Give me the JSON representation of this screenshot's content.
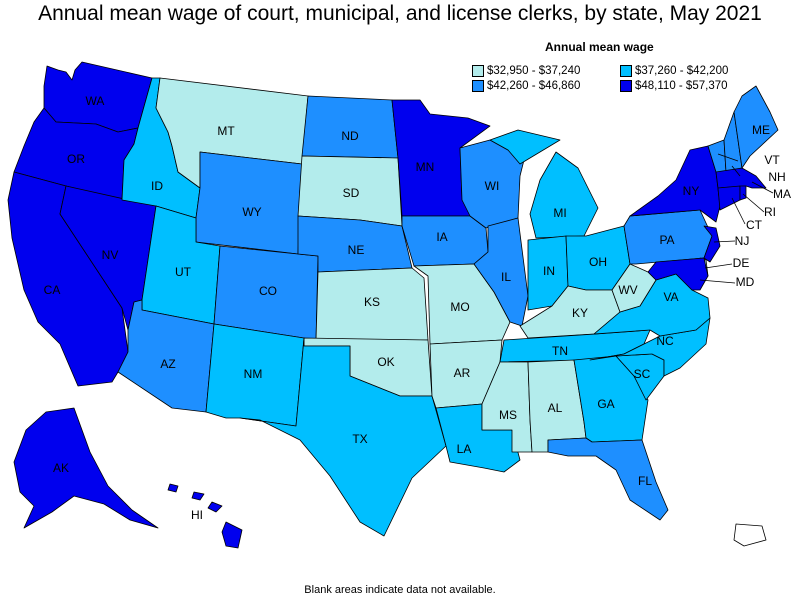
{
  "title": "Annual mean wage of court, municipal, and license clerks, by state, May 2021",
  "legend": {
    "title": "Annual mean wage",
    "items": [
      {
        "key": "c1",
        "label": "$32,950 - $37,240",
        "color": "#b3ecec"
      },
      {
        "key": "c3",
        "label": "$37,260 - $42,200",
        "color": "#00bfff"
      },
      {
        "key": "c2",
        "label": "$42,260 - $46,860",
        "color": "#1e8fff"
      },
      {
        "key": "c4",
        "label": "$48,110 - $57,370",
        "color": "#0000ee"
      }
    ]
  },
  "footnote": "Blank areas indicate data not available.",
  "states": {
    "WA": {
      "label": "WA",
      "class": "c4"
    },
    "OR": {
      "label": "OR",
      "class": "c4"
    },
    "CA": {
      "label": "CA",
      "class": "c4"
    },
    "NV": {
      "label": "NV",
      "class": "c4"
    },
    "ID": {
      "label": "ID",
      "class": "c3"
    },
    "MT": {
      "label": "MT",
      "class": "c1"
    },
    "WY": {
      "label": "WY",
      "class": "c2"
    },
    "UT": {
      "label": "UT",
      "class": "c3"
    },
    "AZ": {
      "label": "AZ",
      "class": "c2"
    },
    "CO": {
      "label": "CO",
      "class": "c2"
    },
    "NM": {
      "label": "NM",
      "class": "c3"
    },
    "ND": {
      "label": "ND",
      "class": "c2"
    },
    "SD": {
      "label": "SD",
      "class": "c1"
    },
    "NE": {
      "label": "NE",
      "class": "c2"
    },
    "KS": {
      "label": "KS",
      "class": "c1"
    },
    "OK": {
      "label": "OK",
      "class": "c1"
    },
    "TX": {
      "label": "TX",
      "class": "c3"
    },
    "MN": {
      "label": "MN",
      "class": "c4"
    },
    "IA": {
      "label": "IA",
      "class": "c2"
    },
    "MO": {
      "label": "MO",
      "class": "c1"
    },
    "AR": {
      "label": "AR",
      "class": "c1"
    },
    "LA": {
      "label": "LA",
      "class": "c3"
    },
    "WI": {
      "label": "WI",
      "class": "c2"
    },
    "IL": {
      "label": "IL",
      "class": "c2"
    },
    "MI": {
      "label": "MI",
      "class": "c3"
    },
    "IN": {
      "label": "IN",
      "class": "c3"
    },
    "OH": {
      "label": "OH",
      "class": "c3"
    },
    "KY": {
      "label": "KY",
      "class": "c1"
    },
    "TN": {
      "label": "TN",
      "class": "c3"
    },
    "MS": {
      "label": "MS",
      "class": "c1"
    },
    "AL": {
      "label": "AL",
      "class": "c1"
    },
    "GA": {
      "label": "GA",
      "class": "c3"
    },
    "FL": {
      "label": "FL",
      "class": "c2"
    },
    "SC": {
      "label": "SC",
      "class": "c3"
    },
    "NC": {
      "label": "NC",
      "class": "c3"
    },
    "VA": {
      "label": "VA",
      "class": "c3"
    },
    "WV": {
      "label": "WV",
      "class": "c1"
    },
    "PA": {
      "label": "PA",
      "class": "c2"
    },
    "NY": {
      "label": "NY",
      "class": "c4"
    },
    "VT": {
      "label": "VT",
      "class": "c2"
    },
    "NH": {
      "label": "NH",
      "class": "c2"
    },
    "ME": {
      "label": "ME",
      "class": "c2"
    },
    "MA": {
      "label": "MA",
      "class": "c4"
    },
    "RI": {
      "label": "RI",
      "class": "c4"
    },
    "CT": {
      "label": "CT",
      "class": "c4"
    },
    "NJ": {
      "label": "NJ",
      "class": "c4"
    },
    "DE": {
      "label": "DE",
      "class": "c1"
    },
    "MD": {
      "label": "MD",
      "class": "c4"
    },
    "AK": {
      "label": "AK",
      "class": "c4"
    },
    "HI": {
      "label": "HI",
      "class": "c4"
    },
    "PR": {
      "label": "",
      "class": "none"
    }
  }
}
